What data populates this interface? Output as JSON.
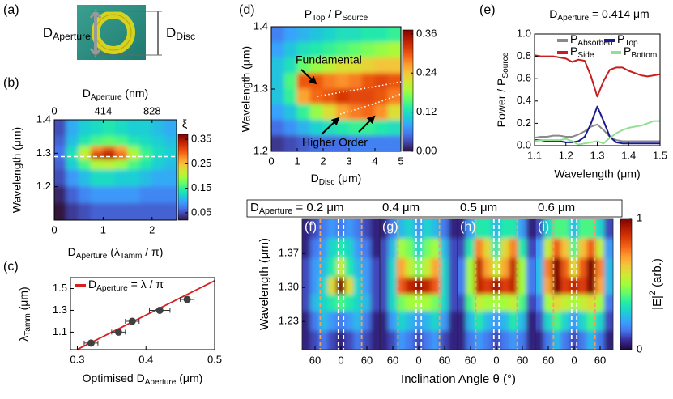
{
  "schematic": {
    "label": "(a)",
    "aperture": [
      "D",
      {
        "sub": "Aperture"
      }
    ],
    "disc": [
      "D",
      {
        "sub": "Disc"
      }
    ]
  },
  "chart_data": [
    {
      "type": "heatmap",
      "panel_label": "(b)",
      "x_label": [
        "D",
        {
          "sub": "Aperture"
        },
        " (λ",
        {
          "sub": "Tamm"
        },
        " / π)"
      ],
      "x2_label": [
        "D",
        {
          "sub": "Aperture"
        },
        " (nm)"
      ],
      "y_label": "Wavelength (μm)",
      "xlim": [
        0,
        2.5
      ],
      "xticks": [
        0,
        1,
        2
      ],
      "x2lim": [
        0,
        1035
      ],
      "x2ticks": [
        0,
        414,
        828
      ],
      "ylim": [
        1.1,
        1.4
      ],
      "yticks": [
        1.2,
        1.3,
        1.4
      ],
      "x_edges": [
        0,
        0.25,
        0.5,
        0.75,
        1,
        1.25,
        1.5,
        1.75,
        2,
        2.25,
        2.5
      ],
      "y_edges": [
        1.4,
        1.35,
        1.32,
        1.3,
        1.28,
        1.25,
        1.2,
        1.15,
        1.1
      ],
      "z": [
        [
          0.05,
          0.1,
          0.12,
          0.13,
          0.14,
          0.13,
          0.12,
          0.12,
          0.11,
          0.1
        ],
        [
          0.06,
          0.11,
          0.14,
          0.16,
          0.17,
          0.16,
          0.14,
          0.13,
          0.12,
          0.11
        ],
        [
          0.07,
          0.13,
          0.2,
          0.28,
          0.31,
          0.27,
          0.19,
          0.15,
          0.13,
          0.12
        ],
        [
          0.07,
          0.14,
          0.22,
          0.33,
          0.35,
          0.3,
          0.21,
          0.16,
          0.13,
          0.12
        ],
        [
          0.06,
          0.12,
          0.16,
          0.2,
          0.21,
          0.19,
          0.16,
          0.14,
          0.12,
          0.11
        ],
        [
          0.05,
          0.09,
          0.11,
          0.13,
          0.13,
          0.12,
          0.12,
          0.11,
          0.1,
          0.1
        ],
        [
          0.03,
          0.06,
          0.08,
          0.09,
          0.09,
          0.09,
          0.09,
          0.08,
          0.08,
          0.08
        ],
        [
          0.02,
          0.04,
          0.05,
          0.06,
          0.06,
          0.06,
          0.06,
          0.06,
          0.06,
          0.06
        ]
      ],
      "hline": 1.29,
      "colorbar": {
        "label": "ξ",
        "lim": [
          0.02,
          0.37
        ],
        "ticks": [
          0.05,
          0.15,
          0.25,
          0.35
        ]
      },
      "colormap": [
        "#30123b",
        "#4145ab",
        "#4675ed",
        "#39a2fc",
        "#1bcfd4",
        "#24eca6",
        "#61fc6c",
        "#a4fc3b",
        "#d1e834",
        "#f3c63a",
        "#fe9b2d",
        "#f36315",
        "#d93806",
        "#b11901",
        "#7a0403"
      ]
    },
    {
      "type": "scatter",
      "panel_label": "(c)",
      "x_label": [
        "Optimised D",
        {
          "sub": "Aperture"
        },
        " (μm)"
      ],
      "y_label": [
        "λ",
        {
          "sub": "Tamm"
        },
        " (μm)"
      ],
      "xlim": [
        0.29,
        0.5
      ],
      "xticks": [
        0.3,
        0.4,
        0.5
      ],
      "ylim": [
        0.94,
        1.6
      ],
      "yticks": [
        1.1,
        1.3,
        1.5
      ],
      "x": [
        0.32,
        0.36,
        0.38,
        0.42,
        0.46
      ],
      "y": [
        1.0,
        1.1,
        1.2,
        1.3,
        1.4
      ],
      "x_err": [
        0.01,
        0.01,
        0.01,
        0.015,
        0.01
      ],
      "color": "#404040",
      "fit": {
        "name": [
          "D",
          {
            "sub": "Aperture"
          },
          " = λ / π"
        ],
        "color": "#d42020",
        "x": [
          0.3,
          0.5
        ],
        "y": [
          0.942,
          1.571
        ]
      }
    },
    {
      "type": "heatmap",
      "panel_label": "(d)",
      "title": [
        "P",
        {
          "sub": "Top"
        },
        " / P",
        {
          "sub": "Source"
        }
      ],
      "x_label": [
        "D",
        {
          "sub": "Disc"
        },
        " (μm)"
      ],
      "y_label": "Wavelength (μm)",
      "xlim": [
        0,
        5
      ],
      "xticks": [
        0,
        1,
        2,
        3,
        4,
        5
      ],
      "ylim": [
        1.2,
        1.4
      ],
      "yticks": [
        1.2,
        1.3,
        1.4
      ],
      "x_edges": [
        0,
        0.5,
        1,
        1.5,
        2,
        2.5,
        3,
        3.5,
        4,
        4.5,
        5
      ],
      "y_edges": [
        1.4,
        1.375,
        1.35,
        1.325,
        1.3,
        1.275,
        1.25,
        1.225,
        1.2
      ],
      "z": [
        [
          0.06,
          0.08,
          0.09,
          0.1,
          0.11,
          0.12,
          0.12,
          0.13,
          0.13,
          0.14
        ],
        [
          0.08,
          0.1,
          0.12,
          0.13,
          0.14,
          0.15,
          0.16,
          0.17,
          0.18,
          0.19
        ],
        [
          0.1,
          0.12,
          0.16,
          0.18,
          0.2,
          0.22,
          0.22,
          0.23,
          0.24,
          0.24
        ],
        [
          0.1,
          0.15,
          0.3,
          0.3,
          0.28,
          0.27,
          0.28,
          0.3,
          0.31,
          0.3
        ],
        [
          0.1,
          0.14,
          0.26,
          0.29,
          0.3,
          0.32,
          0.31,
          0.31,
          0.3,
          0.28
        ],
        [
          0.08,
          0.1,
          0.14,
          0.18,
          0.22,
          0.26,
          0.28,
          0.29,
          0.27,
          0.22
        ],
        [
          0.05,
          0.07,
          0.09,
          0.11,
          0.12,
          0.13,
          0.14,
          0.14,
          0.13,
          0.12
        ],
        [
          0.02,
          0.03,
          0.04,
          0.05,
          0.05,
          0.05,
          0.06,
          0.06,
          0.06,
          0.06
        ]
      ],
      "annotations": [
        "Fundamental",
        "Higher Order"
      ],
      "colorbar": {
        "lim": [
          0,
          0.372
        ],
        "ticks": [
          {
            "value": 0,
            "label": "0.00"
          },
          0.12,
          0.24,
          0.36
        ]
      },
      "colormap": [
        "#30123b",
        "#4145ab",
        "#4675ed",
        "#39a2fc",
        "#1bcfd4",
        "#24eca6",
        "#61fc6c",
        "#a4fc3b",
        "#d1e834",
        "#f3c63a",
        "#fe9b2d",
        "#f36315",
        "#d93806",
        "#b11901",
        "#7a0403"
      ]
    },
    {
      "type": "line",
      "panel_label": "(e)",
      "title": [
        "D",
        {
          "sub": "Aperture"
        },
        " = 0.414 μm"
      ],
      "x_label": "Wavelength (μm)",
      "y_label": [
        "Power / P",
        {
          "sub": "Source"
        }
      ],
      "xlim": [
        1.1,
        1.5
      ],
      "xticks": [
        1.1,
        1.2,
        1.3,
        1.4,
        1.5
      ],
      "ylim": [
        0,
        1
      ],
      "yticks": [
        {
          "value": 0,
          "label": "0.0"
        },
        0.2,
        0.4,
        0.6,
        0.8,
        {
          "value": 1,
          "label": "1.0"
        }
      ],
      "x": [
        1.1,
        1.12,
        1.14,
        1.16,
        1.18,
        1.2,
        1.22,
        1.24,
        1.26,
        1.28,
        1.3,
        1.32,
        1.34,
        1.36,
        1.38,
        1.4,
        1.42,
        1.44,
        1.46,
        1.48,
        1.5
      ],
      "series": [
        {
          "name": [
            "P",
            {
              "sub": "Absorbed"
            }
          ],
          "color": "#8a8a8a",
          "values": [
            0.07,
            0.08,
            0.08,
            0.09,
            0.09,
            0.08,
            0.08,
            0.1,
            0.13,
            0.17,
            0.19,
            0.14,
            0.08,
            0.05,
            0.04,
            0.04,
            0.04,
            0.04,
            0.04,
            0.04,
            0.04
          ]
        },
        {
          "name": [
            "P",
            {
              "sub": "Top"
            }
          ],
          "color": "#1a1a8c",
          "values": [
            0.05,
            0.05,
            0.04,
            0.04,
            0.04,
            0.03,
            0.03,
            0.04,
            0.08,
            0.2,
            0.35,
            0.22,
            0.08,
            0.03,
            0.02,
            0.02,
            0.02,
            0.02,
            0.02,
            0.02,
            0.02
          ]
        },
        {
          "name": [
            "P",
            {
              "sub": "Side"
            }
          ],
          "color": "#c81e1e",
          "values": [
            0.81,
            0.8,
            0.8,
            0.8,
            0.79,
            0.78,
            0.75,
            0.77,
            0.76,
            0.62,
            0.44,
            0.58,
            0.68,
            0.7,
            0.7,
            0.67,
            0.65,
            0.63,
            0.62,
            0.63,
            0.64
          ]
        },
        {
          "name": [
            "P",
            {
              "sub": "Bottom"
            }
          ],
          "color": "#90e090",
          "values": [
            0.04,
            0.05,
            0.05,
            0.05,
            0.05,
            0.06,
            0.04,
            0.01,
            0.02,
            0.03,
            0.04,
            0.02,
            0.07,
            0.11,
            0.14,
            0.16,
            0.17,
            0.18,
            0.2,
            0.22,
            0.22
          ]
        }
      ]
    },
    {
      "type": "heatmap_row",
      "x_label": "Inclination Angle θ (°)",
      "y_label": "Wavelength (μm)",
      "xlim": [
        -90,
        90
      ],
      "xticks": [
        {
          "value": -60,
          "label": "60"
        },
        0,
        60
      ],
      "ylim": [
        1.172,
        1.442
      ],
      "yticks": [
        1.23,
        {
          "value": 1.3,
          "label": "1.30"
        },
        1.37
      ],
      "x_edges": [
        -90,
        -70,
        -50,
        -30,
        -10,
        10,
        30,
        50,
        70,
        90
      ],
      "y_edges": [
        1.442,
        1.4,
        1.36,
        1.32,
        1.285,
        1.25,
        1.21,
        1.172
      ],
      "guide_lines": [
        {
          "color": "#f0a060",
          "x": [
            -48,
            48
          ]
        },
        {
          "color": "#ffffff",
          "x": [
            -6,
            6
          ]
        }
      ],
      "colorbar": {
        "label": [
          "|E|",
          {
            "sup": "2"
          },
          " (arb.)"
        ],
        "lim": [
          0,
          1
        ],
        "ticks": [
          0,
          1
        ]
      },
      "colormap": [
        "#1e0a3c",
        "#3a2a9a",
        "#4675ed",
        "#39a2fc",
        "#1bcfd4",
        "#24eca6",
        "#61fc6c",
        "#a4fc3b",
        "#d1e834",
        "#f3c63a",
        "#fe9b2d",
        "#f36315",
        "#d93806",
        "#b11901",
        "#7a0403"
      ],
      "panels": [
        {
          "label": "(f)",
          "header": [
            "D",
            {
              "sub": "Aperture"
            },
            " = 0.2 μm"
          ],
          "z": [
            [
              0.05,
              0.1,
              0.15,
              0.2,
              0.15,
              0.2,
              0.15,
              0.1,
              0.05
            ],
            [
              0.05,
              0.15,
              0.2,
              0.3,
              0.35,
              0.3,
              0.2,
              0.15,
              0.05
            ],
            [
              0.1,
              0.2,
              0.25,
              0.35,
              0.55,
              0.35,
              0.25,
              0.2,
              0.1
            ],
            [
              0.1,
              0.2,
              0.3,
              0.6,
              1.0,
              0.6,
              0.3,
              0.2,
              0.1
            ],
            [
              0.1,
              0.25,
              0.3,
              0.35,
              0.4,
              0.35,
              0.3,
              0.25,
              0.1
            ],
            [
              0.05,
              0.15,
              0.25,
              0.2,
              0.15,
              0.2,
              0.25,
              0.15,
              0.05
            ],
            [
              0.05,
              0.1,
              0.15,
              0.1,
              0.05,
              0.1,
              0.15,
              0.1,
              0.05
            ]
          ]
        },
        {
          "label": "(g)",
          "header": "0.4 μm",
          "z": [
            [
              0.05,
              0.15,
              0.25,
              0.3,
              0.2,
              0.3,
              0.25,
              0.15,
              0.05
            ],
            [
              0.1,
              0.25,
              0.5,
              0.45,
              0.3,
              0.45,
              0.5,
              0.25,
              0.1
            ],
            [
              0.1,
              0.3,
              0.7,
              0.55,
              0.45,
              0.55,
              0.7,
              0.3,
              0.1
            ],
            [
              0.1,
              0.3,
              0.8,
              0.9,
              0.95,
              0.9,
              0.8,
              0.3,
              0.1
            ],
            [
              0.1,
              0.3,
              0.45,
              0.5,
              0.5,
              0.5,
              0.45,
              0.3,
              0.1
            ],
            [
              0.05,
              0.2,
              0.3,
              0.25,
              0.2,
              0.25,
              0.3,
              0.2,
              0.05
            ],
            [
              0.05,
              0.1,
              0.2,
              0.15,
              0.1,
              0.15,
              0.2,
              0.1,
              0.05
            ]
          ]
        },
        {
          "label": "(h)",
          "header": "0.5 μm",
          "z": [
            [
              0.05,
              0.2,
              0.35,
              0.35,
              0.25,
              0.35,
              0.35,
              0.2,
              0.05
            ],
            [
              0.1,
              0.35,
              0.75,
              0.6,
              0.35,
              0.6,
              0.75,
              0.35,
              0.1
            ],
            [
              0.15,
              0.5,
              0.9,
              0.7,
              0.55,
              0.7,
              0.9,
              0.5,
              0.15
            ],
            [
              0.15,
              0.5,
              0.9,
              0.85,
              0.95,
              0.85,
              0.9,
              0.5,
              0.15
            ],
            [
              0.1,
              0.4,
              0.55,
              0.5,
              0.5,
              0.5,
              0.55,
              0.4,
              0.1
            ],
            [
              0.05,
              0.25,
              0.35,
              0.25,
              0.2,
              0.25,
              0.35,
              0.25,
              0.05
            ],
            [
              0.05,
              0.15,
              0.2,
              0.15,
              0.1,
              0.15,
              0.2,
              0.15,
              0.05
            ]
          ]
        },
        {
          "label": "(i)",
          "header": "0.6 μm",
          "z": [
            [
              0.1,
              0.3,
              0.4,
              0.4,
              0.25,
              0.4,
              0.4,
              0.3,
              0.1
            ],
            [
              0.2,
              0.55,
              0.8,
              0.65,
              0.4,
              0.65,
              0.8,
              0.55,
              0.2
            ],
            [
              0.25,
              0.75,
              1.0,
              0.8,
              0.6,
              0.8,
              1.0,
              0.75,
              0.25
            ],
            [
              0.25,
              0.7,
              1.0,
              0.85,
              0.9,
              0.85,
              1.0,
              0.7,
              0.25
            ],
            [
              0.15,
              0.5,
              0.6,
              0.55,
              0.5,
              0.55,
              0.6,
              0.5,
              0.15
            ],
            [
              0.1,
              0.3,
              0.4,
              0.3,
              0.2,
              0.3,
              0.4,
              0.3,
              0.1
            ],
            [
              0.05,
              0.15,
              0.25,
              0.15,
              0.1,
              0.15,
              0.25,
              0.15,
              0.05
            ]
          ]
        }
      ]
    }
  ]
}
